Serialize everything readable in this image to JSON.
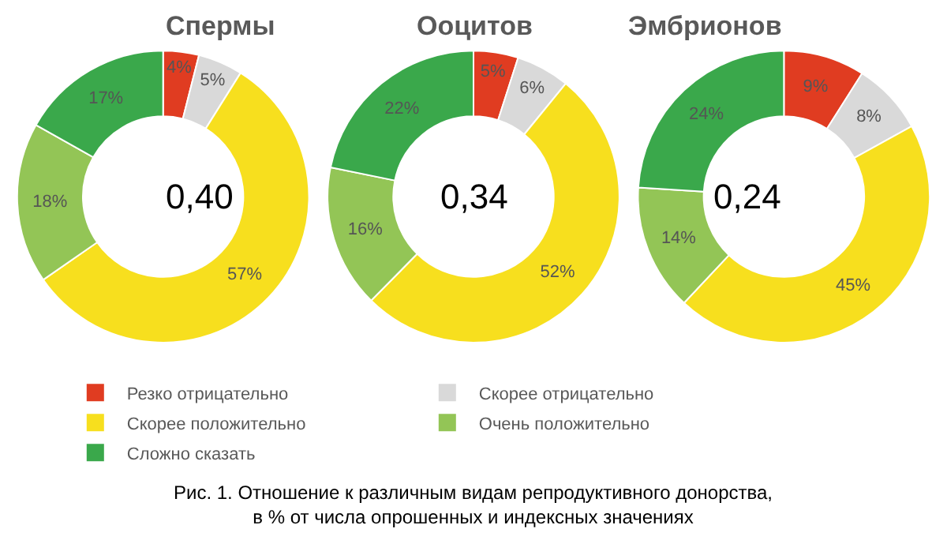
{
  "chart_data": [
    {
      "type": "donut",
      "title": "Спермы",
      "categories": [
        "Резко отрицательно",
        "Скорее отрицательно",
        "Скорее положительно",
        "Очень положительно",
        "Сложно сказать"
      ],
      "values": [
        4,
        5,
        57,
        18,
        17
      ],
      "value_labels": [
        "4%",
        "5%",
        "57%",
        "18%",
        "17%"
      ],
      "colors": [
        "#e03c21",
        "#d9d9d9",
        "#f7df1e",
        "#93c556",
        "#3aa84b"
      ],
      "annotations": [
        "0,40",
        "Рис. 1. Отношение к различным видам репродуктивного донорства,\nв % от числа опрошенных и индексных значениях"
      ],
      "legend": "bottom"
    },
    {
      "type": "donut",
      "title": "Ооцитов",
      "values": [
        5,
        6,
        52,
        16,
        22
      ],
      "value_labels": [
        "5%",
        "6%",
        "52%",
        "16%",
        "22%"
      ],
      "colors": [
        "#e03c21",
        "#d9d9d9",
        "#f7df1e",
        "#93c556",
        "#3aa84b"
      ],
      "annotations": [
        "0,34"
      ]
    },
    {
      "type": "donut",
      "title": "Эмбрионов",
      "values": [
        9,
        8,
        45,
        14,
        24
      ],
      "value_labels": [
        "9%",
        "8%",
        "45%",
        "14%",
        "24%"
      ],
      "colors": [
        "#e03c21",
        "#d9d9d9",
        "#f7df1e",
        "#93c556",
        "#3aa84b"
      ],
      "annotations": [
        "0,24"
      ]
    }
  ]
}
